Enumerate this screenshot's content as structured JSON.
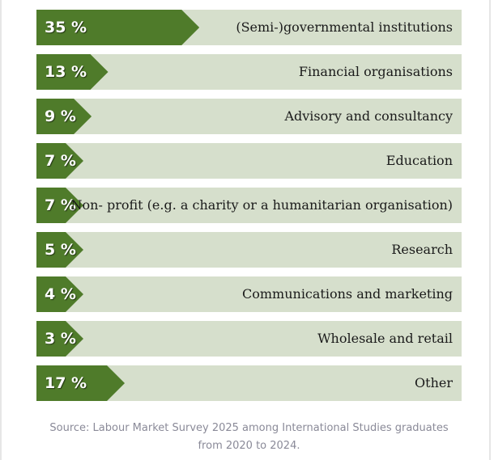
{
  "chart_data": {
    "type": "bar",
    "orientation": "horizontal",
    "categories": [
      "(Semi-)governmental institutions",
      "Financial organisations",
      "Advisory and consultancy",
      "Education",
      "Non- profit (e.g. a charity or a humanitarian organisation)",
      "Research",
      "Communications and marketing",
      "Wholesale and retail",
      "Other"
    ],
    "values": [
      35,
      13,
      9,
      7,
      7,
      5,
      4,
      3,
      17
    ],
    "value_labels": [
      "35 %",
      "13 %",
      "9 %",
      "7 %",
      "7 %",
      "5 %",
      "4 %",
      "3 %",
      "17 %"
    ],
    "unit": "%",
    "xlim": [
      0,
      100
    ],
    "grid": false,
    "legend": "none"
  },
  "source": "Source: Labour Market Survey 2025 among International Studies graduates from 2020 to 2024.",
  "colors": {
    "bar": "#4f7b2a",
    "track": "#d6dfcc",
    "value_text": "#ffffff",
    "label_text": "#1a1a1a",
    "source_text": "#8a8a98"
  }
}
